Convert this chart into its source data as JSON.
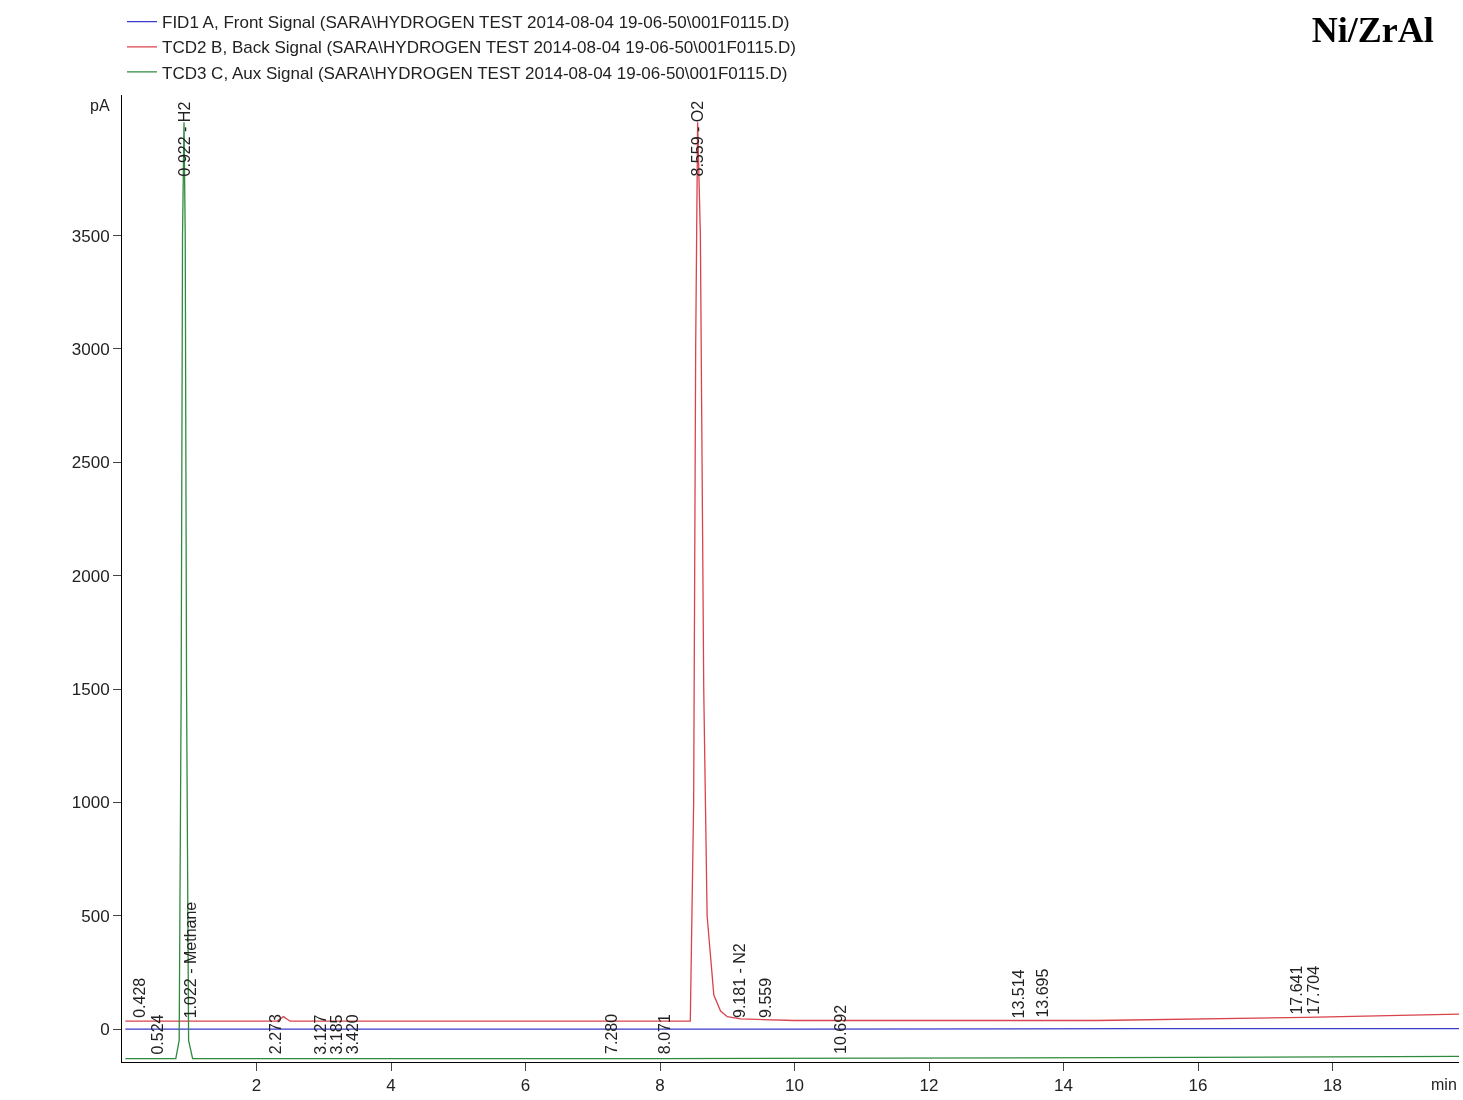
{
  "chart_data": {
    "type": "line",
    "title": "Ni/ZrAl",
    "xlabel": "min",
    "ylabel": "pA",
    "xlim": [
      0,
      19.88
    ],
    "ylim": [
      -145,
      4120
    ],
    "xticks": [
      2,
      4,
      6,
      8,
      10,
      12,
      14,
      16,
      18
    ],
    "yticks": [
      0,
      500,
      1000,
      1500,
      2000,
      2500,
      3000,
      3500
    ],
    "legend": "top left",
    "marker": "none",
    "line_style": "solid",
    "series": [
      {
        "name": "FID1 A, Front Signal (SARA\\HYDROGEN TEST 2014-08-04 19-06-50\\001F0115.D)",
        "color": "#3a3acb",
        "x": [
          0.05,
          5,
          10,
          15,
          19.88
        ],
        "values": [
          0,
          0,
          0,
          2,
          2
        ]
      },
      {
        "name": "TCD2 B, Back Signal (SARA\\HYDROGEN TEST 2014-08-04 19-06-50\\001F0115.D)",
        "color": "#d9434b",
        "x": [
          0.05,
          2.3,
          2.4,
          2.5,
          8.45,
          8.5,
          8.53,
          8.559,
          8.6,
          8.65,
          8.7,
          8.8,
          8.9,
          9.0,
          9.2,
          10,
          14.5,
          17.6,
          19.88
        ],
        "values": [
          35,
          35,
          55,
          35,
          35,
          1000,
          3000,
          4000,
          3500,
          1500,
          500,
          150,
          80,
          55,
          45,
          38,
          38,
          52,
          66
        ]
      },
      {
        "name": "TCD3 C, Aux Signal (SARA\\HYDROGEN TEST 2014-08-04 19-06-50\\001F0115.D)",
        "color": "#2e8b3e",
        "x": [
          0.05,
          0.8,
          0.85,
          0.88,
          0.9,
          0.922,
          0.94,
          0.96,
          0.99,
          1.05,
          8,
          16,
          19.88
        ],
        "values": [
          -130,
          -130,
          -50,
          1500,
          3500,
          4000,
          3500,
          1500,
          -50,
          -130,
          -130,
          -125,
          -120
        ]
      }
    ],
    "annotations": [
      {
        "text": "0.922 - H2",
        "x": 0.922,
        "y": 3750
      },
      {
        "text": "8.559 - O2",
        "x": 8.559,
        "y": 3750
      },
      {
        "text": "0.428",
        "x": 0.428,
        "y": 40
      },
      {
        "text": "0.524",
        "x": 0.524,
        "y": -120
      },
      {
        "text": "1.022 - Methane",
        "x": 1.022,
        "y": 40
      },
      {
        "text": "2.273",
        "x": 2.273,
        "y": -120
      },
      {
        "text": "3.127",
        "x": 3.127,
        "y": -120
      },
      {
        "text": "3.185",
        "x": 3.185,
        "y": -120
      },
      {
        "text": "3.420",
        "x": 3.42,
        "y": -120
      },
      {
        "text": "7.280",
        "x": 7.28,
        "y": -120
      },
      {
        "text": "8.071",
        "x": 8.071,
        "y": -120
      },
      {
        "text": "9.181 - N2",
        "x": 9.181,
        "y": 40
      },
      {
        "text": "9.559",
        "x": 9.559,
        "y": 40
      },
      {
        "text": "10.692",
        "x": 10.692,
        "y": -120
      },
      {
        "text": "13.514",
        "x": 13.514,
        "y": 40
      },
      {
        "text": "13.695",
        "x": 13.695,
        "y": 40
      },
      {
        "text": "17.641",
        "x": 17.641,
        "y": 55
      },
      {
        "text": "17.704",
        "x": 17.704,
        "y": 55
      }
    ]
  }
}
